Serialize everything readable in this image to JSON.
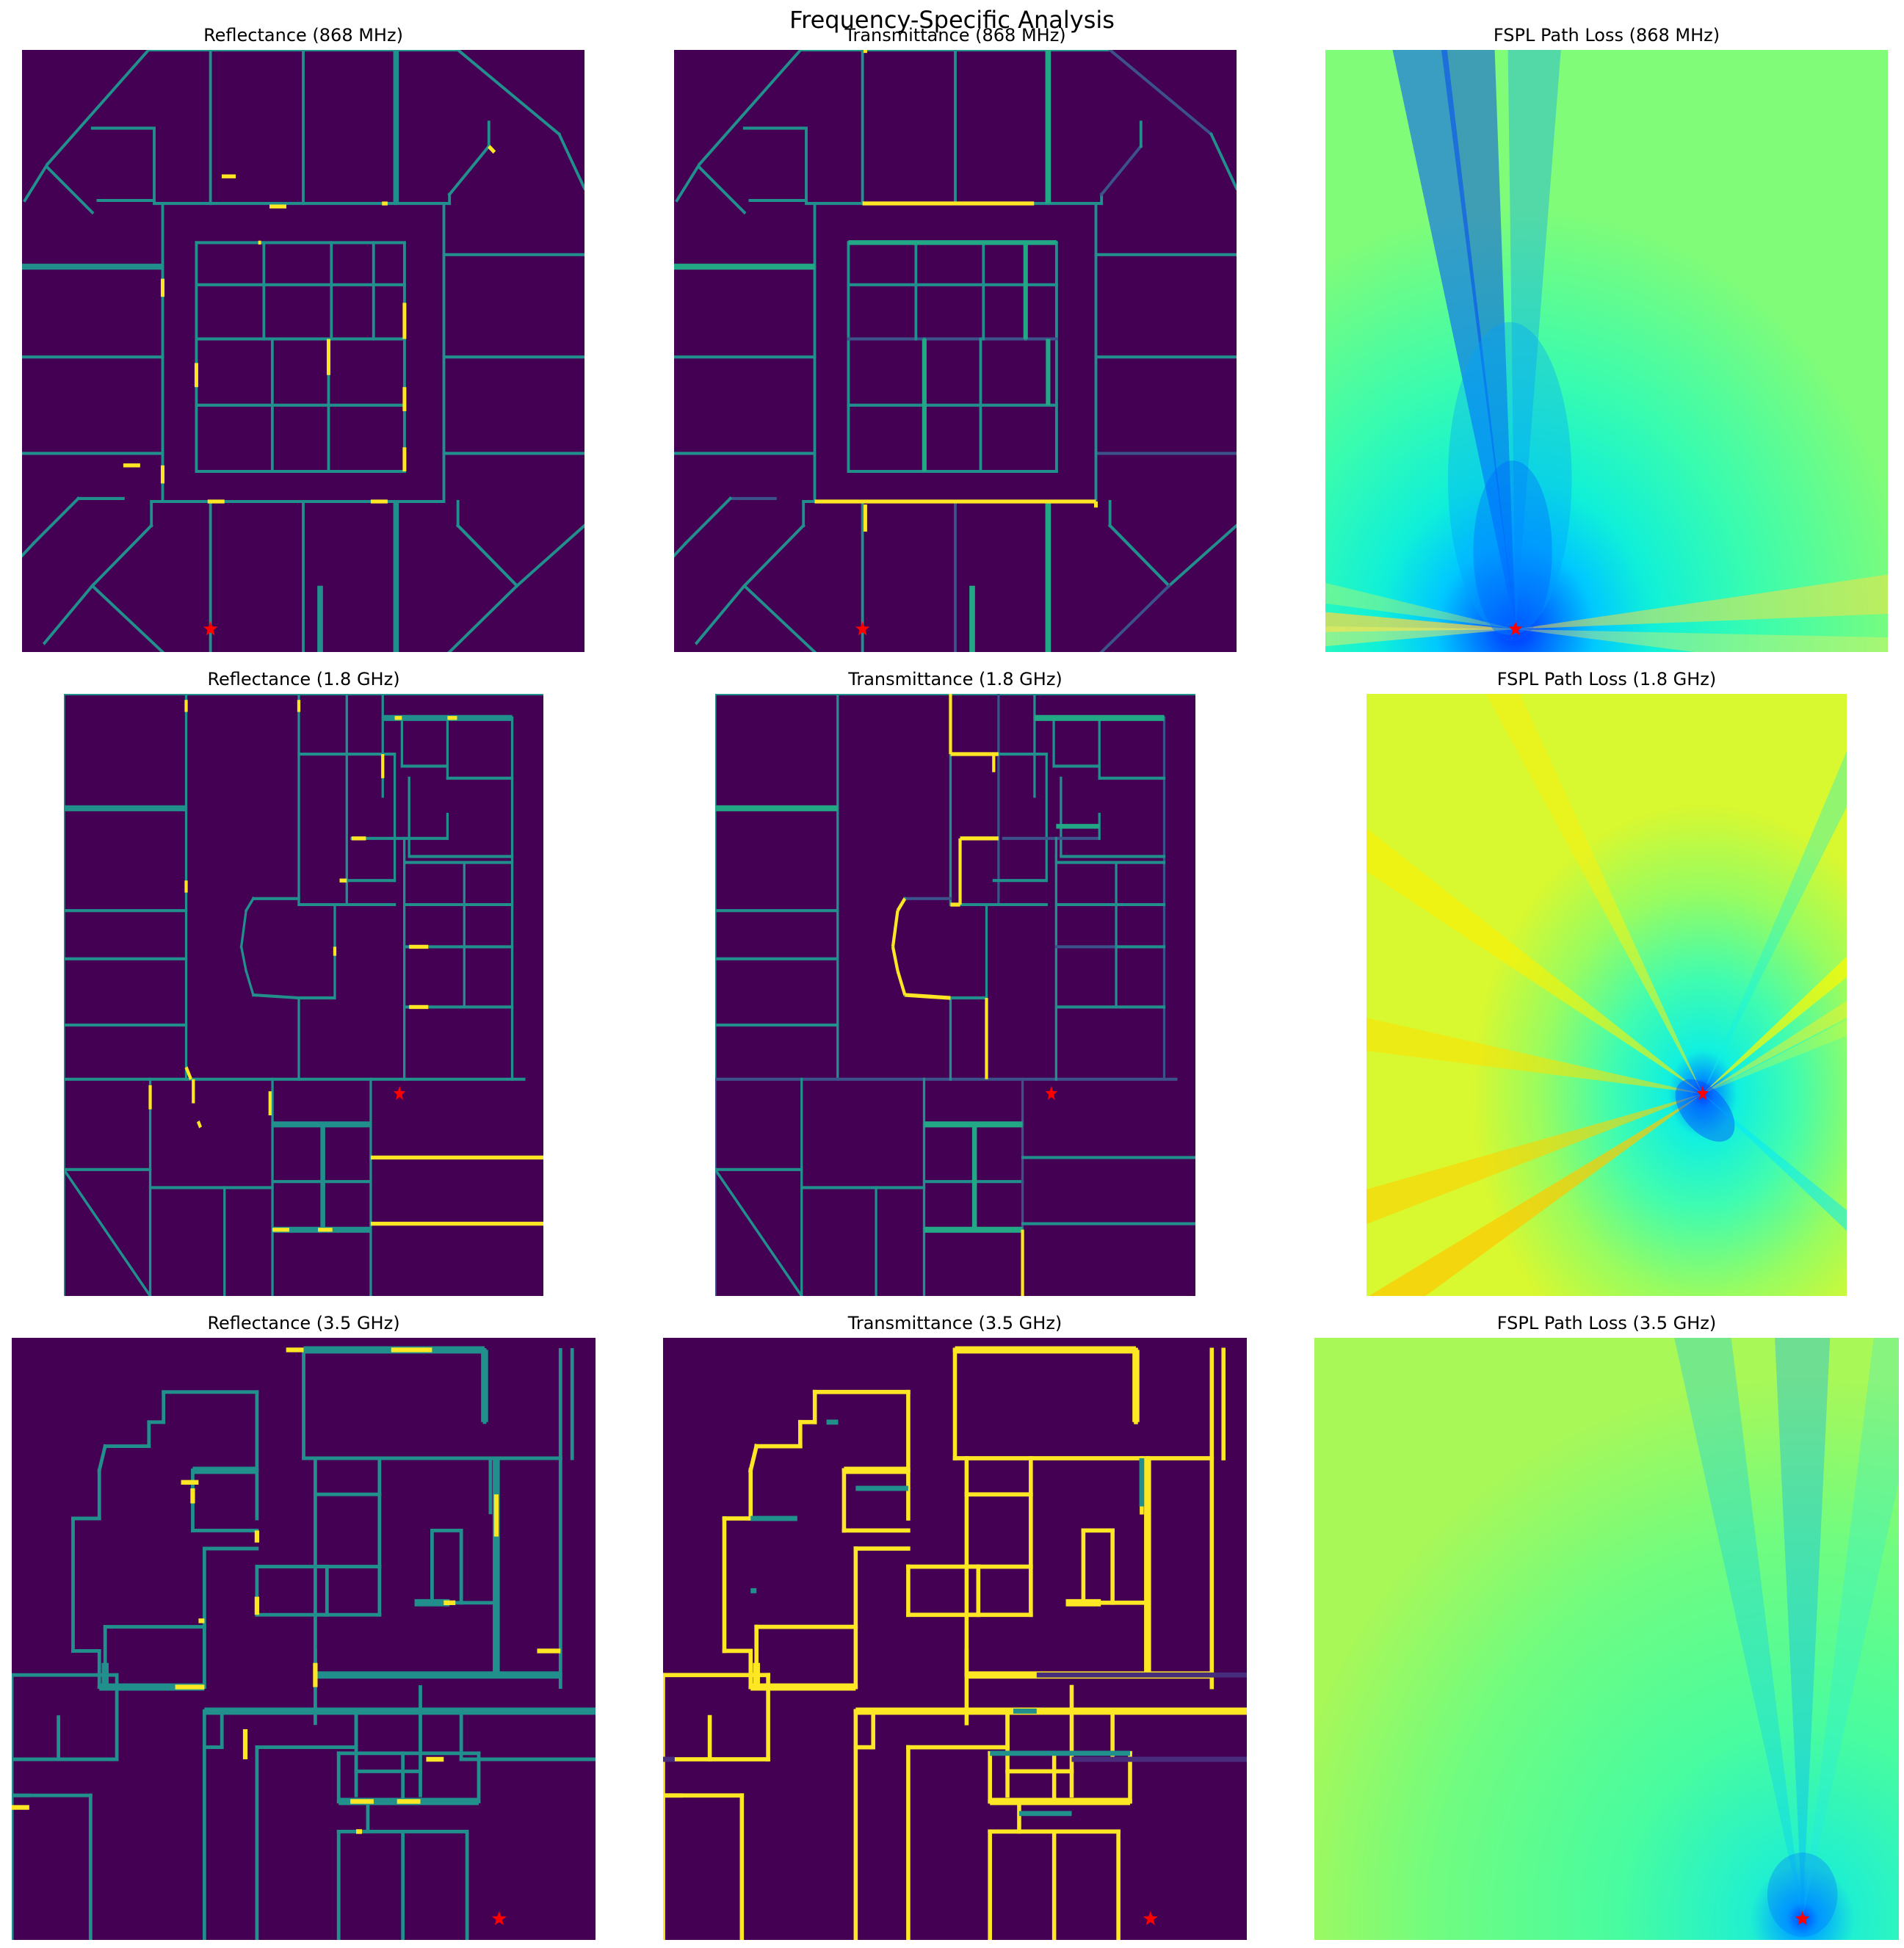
{
  "figure": {
    "suptitle": "Frequency-Specific Analysis"
  },
  "colors": {
    "background": "#440154",
    "wall_mid": "#21908d",
    "wall_dim": "#3b528b",
    "wall_low": "#472d7b",
    "wall_high": "#fde725",
    "wall_green": "#22a884",
    "marker": "#ff0000"
  },
  "chart_data": [
    {
      "type": "heatmap",
      "kind": "floorplan",
      "title": "Reflectance (868 MHz)",
      "layout": "A",
      "role": "reflectance",
      "tx": [
        0.335,
        0.962
      ]
    },
    {
      "type": "heatmap",
      "kind": "floorplan",
      "title": "Transmittance (868 MHz)",
      "layout": "A",
      "role": "transmittance",
      "tx": [
        0.335,
        0.962
      ]
    },
    {
      "type": "heatmap",
      "kind": "pathloss",
      "title": "FSPL Path Loss (868 MHz)",
      "colormap": "jet-like",
      "base_color": "#44f0a8",
      "tx": [
        0.338,
        0.962
      ]
    },
    {
      "type": "heatmap",
      "kind": "floorplan",
      "title": "Reflectance (1.8 GHz)",
      "layout": "B",
      "role": "reflectance",
      "tx": [
        0.7,
        0.664
      ]
    },
    {
      "type": "heatmap",
      "kind": "floorplan",
      "title": "Transmittance (1.8 GHz)",
      "layout": "B",
      "role": "transmittance",
      "tx": [
        0.7,
        0.664
      ]
    },
    {
      "type": "heatmap",
      "kind": "pathloss",
      "title": "FSPL Path Loss (1.8 GHz)",
      "colormap": "jet-like",
      "base_color": "#a8f858",
      "tx": [
        0.7,
        0.664
      ]
    },
    {
      "type": "heatmap",
      "kind": "floorplan",
      "title": "Reflectance (3.5 GHz)",
      "layout": "C",
      "role": "reflectance",
      "tx": [
        0.835,
        0.965
      ]
    },
    {
      "type": "heatmap",
      "kind": "floorplan",
      "title": "Transmittance (3.5 GHz)",
      "layout": "C",
      "role": "transmittance",
      "tx": [
        0.835,
        0.965
      ]
    },
    {
      "type": "heatmap",
      "kind": "pathloss",
      "title": "FSPL Path Loss (3.5 GHz)",
      "colormap": "jet-like",
      "base_color": "#5cfc90",
      "tx": [
        0.835,
        0.965
      ]
    }
  ]
}
